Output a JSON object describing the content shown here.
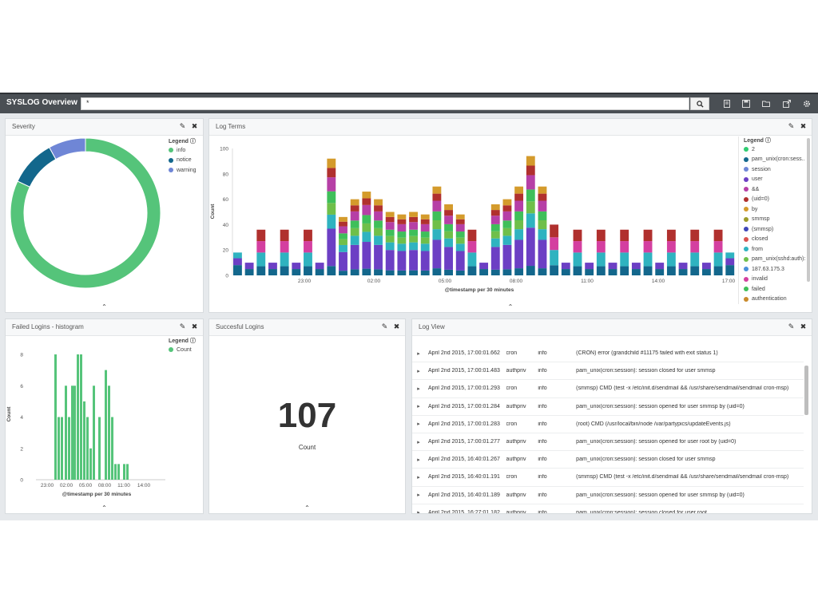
{
  "app": {
    "title": "SYSLOG Overview"
  },
  "search": {
    "value": "*"
  },
  "colors": {
    "info": "#55c47a",
    "notice": "#13678c",
    "warning": "#6f86d6"
  },
  "toolbar_icons": [
    "search-icon",
    "new-dashboard-icon",
    "save-icon",
    "open-icon",
    "share-icon",
    "gear-icon"
  ],
  "panels": {
    "severity": {
      "title": "Severity"
    },
    "log_terms": {
      "title": "Log Terms"
    },
    "failed_logins": {
      "title": "Failed Logins - histogram"
    },
    "successful_logins": {
      "title": "Succesful Logins"
    },
    "log_view": {
      "title": "Log View"
    }
  },
  "severity": {
    "legend_title": "Legend",
    "legend": [
      {
        "label": "info",
        "color": "#55c47a"
      },
      {
        "label": "notice",
        "color": "#13678c"
      },
      {
        "label": "warning",
        "color": "#6f86d6"
      }
    ]
  },
  "log_terms": {
    "ylabel": "Count",
    "xlabel": "@timestamp per 30 minutes",
    "yticks": [
      "0",
      "20",
      "40",
      "60",
      "80",
      "100"
    ],
    "xticks": [
      "23:00",
      "02:00",
      "05:00",
      "08:00",
      "11:00",
      "14:00",
      "17:00"
    ],
    "legend_title": "Legend",
    "legend": [
      {
        "label": "2",
        "color": "#2ecc71"
      },
      {
        "label": "pam_unix(cron:sess...",
        "color": "#13678c"
      },
      {
        "label": "session",
        "color": "#6f86d6"
      },
      {
        "label": "user",
        "color": "#6c3fc4"
      },
      {
        "label": "&&",
        "color": "#b63fa6"
      },
      {
        "label": "(uid=0)",
        "color": "#b0302e"
      },
      {
        "label": "by",
        "color": "#d49b2c"
      },
      {
        "label": "smmsp",
        "color": "#9b9b2a"
      },
      {
        "label": "(smmsp)",
        "color": "#3e46b8"
      },
      {
        "label": "closed",
        "color": "#d9534f"
      },
      {
        "label": "from",
        "color": "#2fb3c0"
      },
      {
        "label": "pam_unix(sshd:auth):",
        "color": "#6fbf4a"
      },
      {
        "label": "187.63.175.3",
        "color": "#4a90d9"
      },
      {
        "label": "invalid",
        "color": "#d43fa0"
      },
      {
        "label": "failed",
        "color": "#3fbf5a"
      },
      {
        "label": "authentication",
        "color": "#c98a2b"
      }
    ]
  },
  "failed_logins": {
    "ylabel": "Count",
    "xlabel": "@timestamp per 30 minutes",
    "yticks": [
      "0",
      "2",
      "4",
      "6",
      "8"
    ],
    "xticks": [
      "23:00",
      "02:00",
      "05:00",
      "08:00",
      "11:00",
      "14:00"
    ],
    "legend_title": "Legend",
    "legend": [
      {
        "label": "Count",
        "color": "#55c47a"
      }
    ]
  },
  "successful_logins": {
    "value": "107",
    "label": "Count"
  },
  "log_view": {
    "rows": [
      {
        "time": "April 2nd 2015, 17:00:01.662",
        "facility": "cron",
        "severity": "info",
        "message": "(CRON) error (grandchild #11175 failed with exit status 1)"
      },
      {
        "time": "April 2nd 2015, 17:00:01.483",
        "facility": "authpriv",
        "severity": "info",
        "message": "pam_unix(cron:session): session closed for user smmsp"
      },
      {
        "time": "April 2nd 2015, 17:00:01.293",
        "facility": "cron",
        "severity": "info",
        "message": "(smmsp) CMD (test -x /etc/init.d/sendmail && /usr/share/sendmail/sendmail cron-msp)"
      },
      {
        "time": "April 2nd 2015, 17:00:01.284",
        "facility": "authpriv",
        "severity": "info",
        "message": "pam_unix(cron:session): session opened for user smmsp by (uid=0)"
      },
      {
        "time": "April 2nd 2015, 17:00:01.283",
        "facility": "cron",
        "severity": "info",
        "message": "(root) CMD (/usr/local/bin/node /var/partypics/updateEvents.js)"
      },
      {
        "time": "April 2nd 2015, 17:00:01.277",
        "facility": "authpriv",
        "severity": "info",
        "message": "pam_unix(cron:session): session opened for user root by (uid=0)"
      },
      {
        "time": "April 2nd 2015, 16:40:01.267",
        "facility": "authpriv",
        "severity": "info",
        "message": "pam_unix(cron:session): session closed for user smmsp"
      },
      {
        "time": "April 2nd 2015, 16:40:01.191",
        "facility": "cron",
        "severity": "info",
        "message": "(smmsp) CMD (test -x /etc/init.d/sendmail && /usr/share/sendmail/sendmail cron-msp)"
      },
      {
        "time": "April 2nd 2015, 16:40:01.189",
        "facility": "authpriv",
        "severity": "info",
        "message": "pam_unix(cron:session): session opened for user smmsp by (uid=0)"
      },
      {
        "time": "April 2nd 2015, 16:27:01.182",
        "facility": "authpriv",
        "severity": "info",
        "message": "pam_unix(cron:session): session closed for user root"
      }
    ]
  },
  "chart_data": [
    {
      "type": "pie",
      "title": "Severity",
      "donut": true,
      "categories": [
        "info",
        "notice",
        "warning"
      ],
      "values": [
        82,
        10,
        8
      ],
      "legend_position": "top-right"
    },
    {
      "type": "bar",
      "stacked": true,
      "title": "Log Terms",
      "xlabel": "@timestamp per 30 minutes",
      "ylabel": "Count",
      "ylim": [
        0,
        100
      ],
      "x_tick_labels": [
        "23:00",
        "02:00",
        "05:00",
        "08:00",
        "11:00",
        "14:00",
        "17:00"
      ],
      "totals": [
        18,
        10,
        36,
        10,
        36,
        10,
        36,
        10,
        92,
        46,
        60,
        66,
        60,
        50,
        48,
        50,
        48,
        70,
        56,
        48,
        36,
        10,
        56,
        60,
        70,
        94,
        70,
        40,
        10,
        36,
        10,
        36,
        10,
        36,
        10,
        36,
        10,
        36,
        10,
        36,
        10,
        36,
        18
      ],
      "legend_position": "right"
    },
    {
      "type": "bar",
      "title": "Failed Logins - histogram",
      "xlabel": "@timestamp per 30 minutes",
      "ylabel": "Count",
      "ylim": [
        0,
        8
      ],
      "x_tick_labels": [
        "23:00",
        "02:00",
        "05:00",
        "08:00",
        "11:00",
        "14:00"
      ],
      "series": [
        {
          "name": "Count",
          "values": [
            8,
            4,
            4,
            6,
            4,
            6,
            6,
            8,
            8,
            5,
            4,
            2,
            6,
            4,
            7,
            6,
            4,
            1,
            1,
            1,
            1
          ]
        }
      ],
      "legend_position": "top-right"
    }
  ]
}
